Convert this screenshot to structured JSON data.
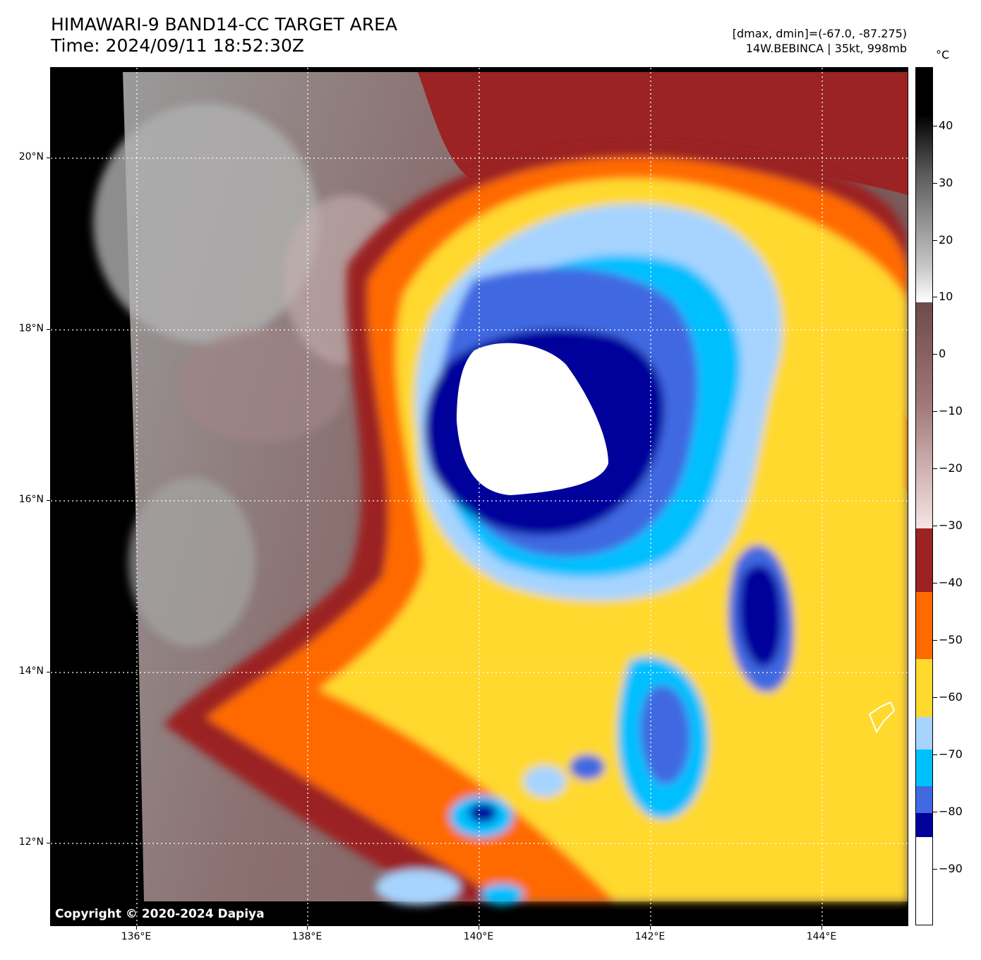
{
  "header": {
    "title_line1": "HIMAWARI-9 BAND14-CC TARGET AREA",
    "title_line2": "Time: 2024/09/11 18:52:30Z",
    "meta_line1": "[dmax, dmin]=(-67.0, -87.275)",
    "meta_line2": "14W.BEBINCA | 35kt, 998mb"
  },
  "image": {
    "copyright": "Copyright © 2020-2024 Dapiya",
    "lat_labels": [
      "20°N",
      "18°N",
      "16°N",
      "14°N",
      "12°N"
    ],
    "lon_labels": [
      "136°E",
      "138°E",
      "140°E",
      "142°E",
      "144°E"
    ]
  },
  "colorbar": {
    "unit": "°C",
    "tick_labels": [
      "40",
      "30",
      "20",
      "10",
      "0",
      "−10",
      "−20",
      "−30",
      "−40",
      "−50",
      "−60",
      "−70",
      "−80",
      "−90"
    ],
    "colors": {
      "black": "#000000",
      "dark_red": "#9b2323",
      "orange": "#ff6a00",
      "yellow": "#ffd92e",
      "light_blue": "#a6d4ff",
      "cyan": "#00bfff",
      "royal_blue": "#4169e1",
      "navy": "#00009b",
      "white": "#ffffff"
    }
  }
}
